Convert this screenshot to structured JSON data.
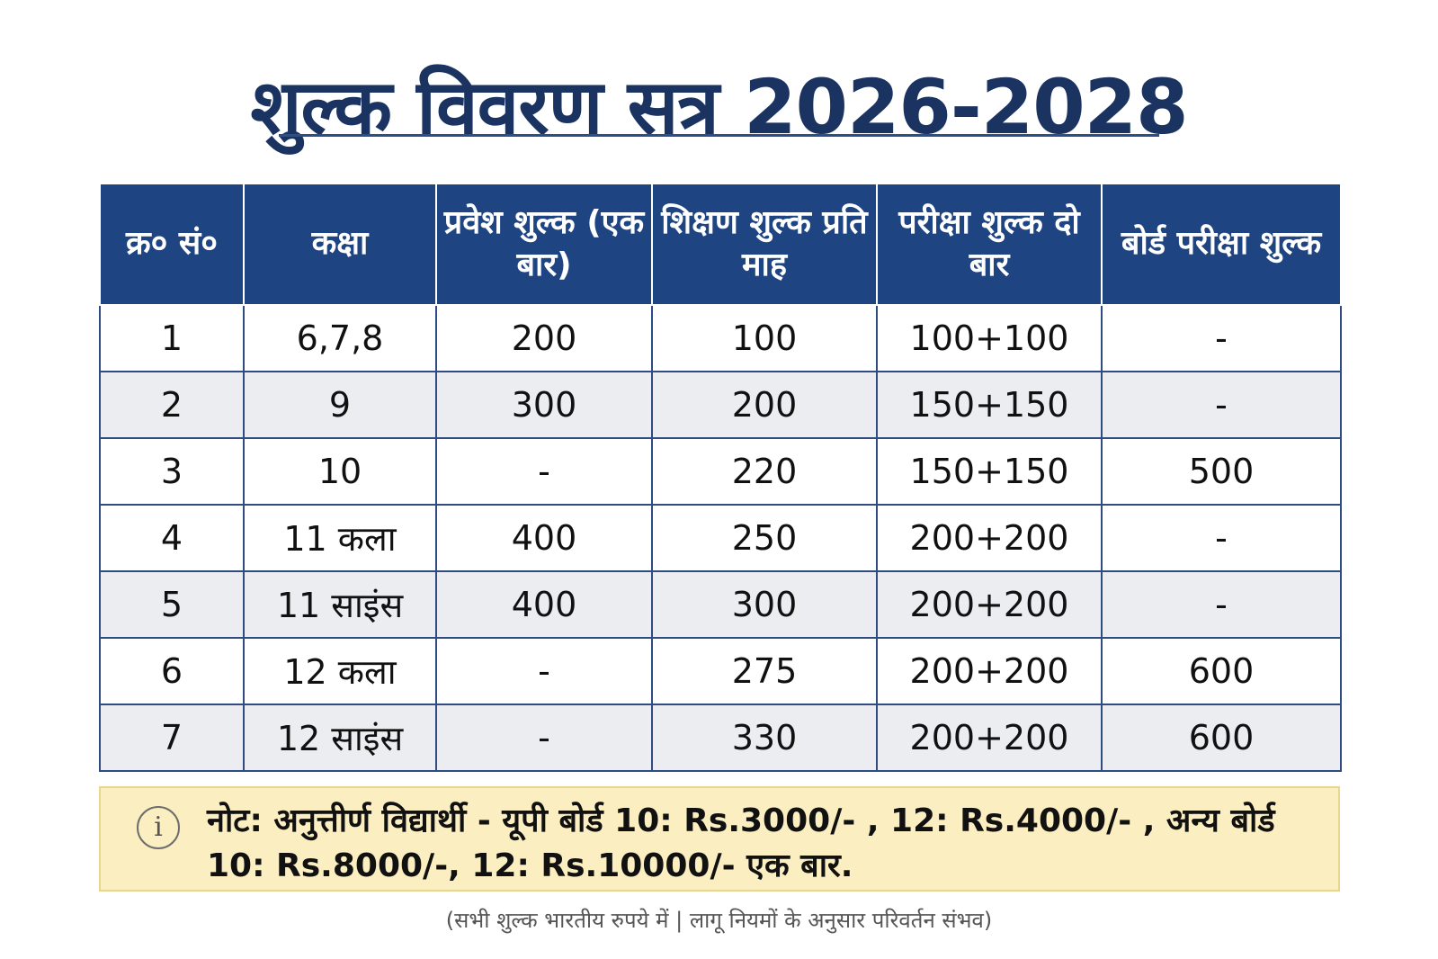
{
  "title": "शुल्क विवरण सत्र 2026-2028",
  "table": {
    "headers": [
      "क्र० सं०",
      "कक्षा",
      "प्रवेश शुल्क (एक बार)",
      "शिक्षण शुल्क प्रति माह",
      "परीक्षा शुल्क दो बार",
      "बोर्ड परीक्षा शुल्क"
    ],
    "rows": [
      [
        "1",
        "6,7,8",
        "200",
        "100",
        "100+100",
        "-"
      ],
      [
        "2",
        "9",
        "300",
        "200",
        "150+150",
        "-"
      ],
      [
        "3",
        "10",
        "-",
        "220",
        "150+150",
        "500"
      ],
      [
        "4",
        "11 कला",
        "400",
        "250",
        "200+200",
        "-"
      ],
      [
        "5",
        "11 साइंस",
        "400",
        "300",
        "200+200",
        "-"
      ],
      [
        "6",
        "12 कला",
        "-",
        "275",
        "200+200",
        "600"
      ],
      [
        "7",
        "12 साइंस",
        "-",
        "330",
        "200+200",
        "600"
      ]
    ]
  },
  "note": {
    "icon": "info-icon",
    "icon_glyph": "i",
    "text": "नोट: अनुत्तीर्ण विद्यार्थी - यूपी बोर्ड 10: Rs.3000/- , 12: Rs.4000/- , अन्य बोर्ड 10: Rs.8000/-, 12: Rs.10000/- एक बार."
  },
  "footer": "(सभी शुल्क भारतीय रुपये में | लागू नियमों के अनुसार परिवर्तन संभव)",
  "colors": {
    "title": "#1b3361",
    "header_bg": "#1f4482",
    "row_alt_bg": "#ebedf1",
    "note_bg": "#fbeec0"
  }
}
